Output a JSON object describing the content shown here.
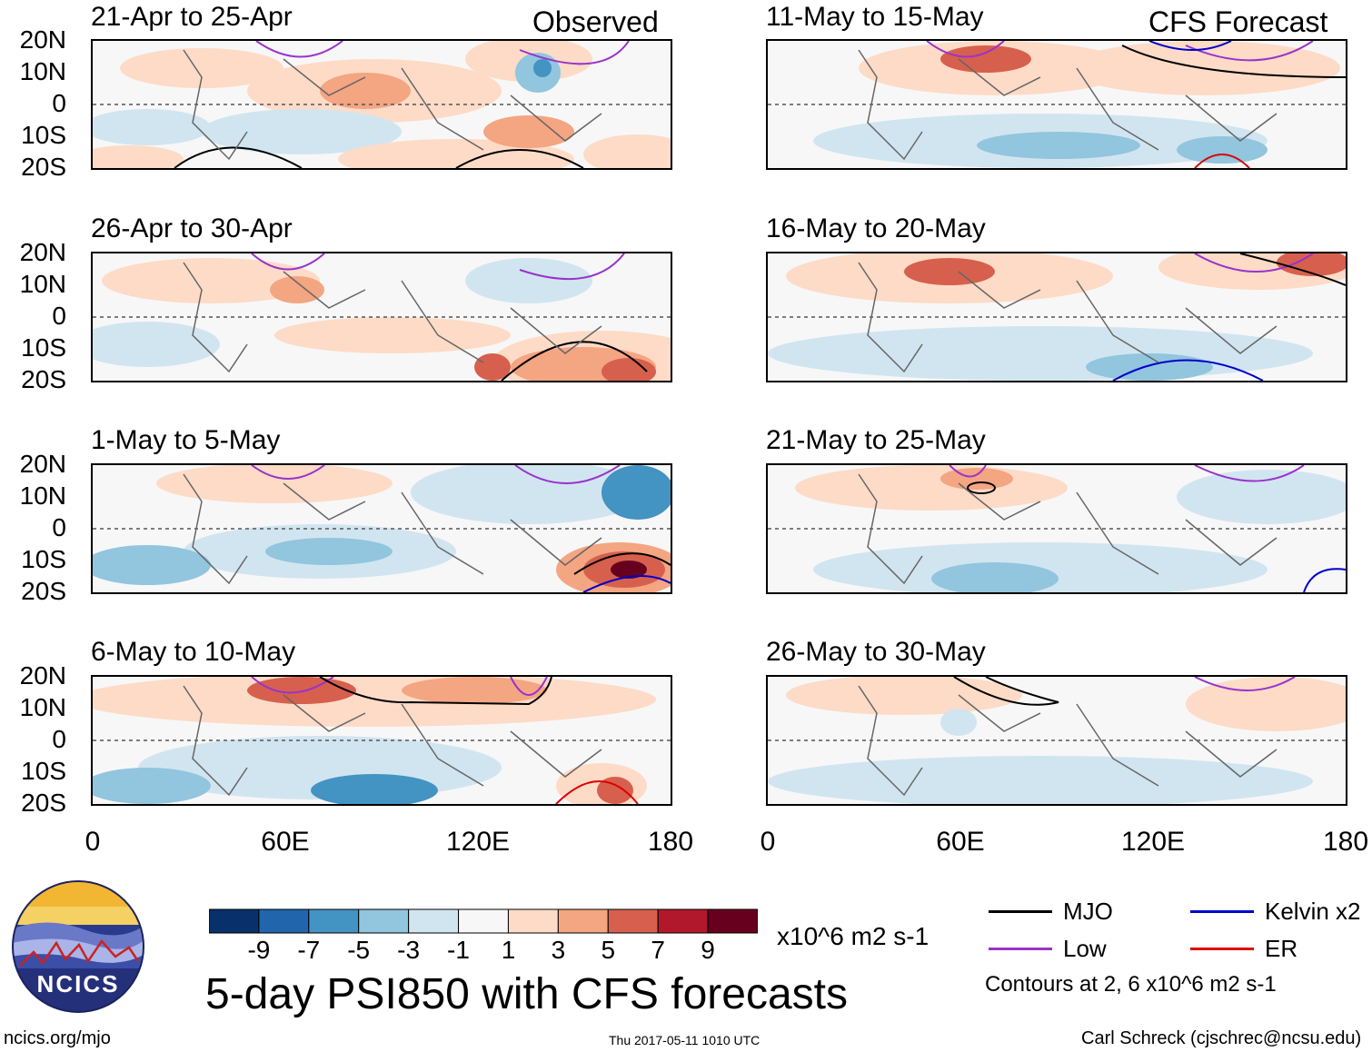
{
  "left_label": "Observed",
  "right_label": "CFS Forecast",
  "panels_left": [
    "21-Apr to 25-Apr",
    "26-Apr to 30-Apr",
    "1-May to 5-May",
    "6-May to 10-May"
  ],
  "panels_right": [
    "11-May to 15-May",
    "16-May to 20-May",
    "21-May to 25-May",
    "26-May to 30-May"
  ],
  "lat_labels": [
    "20N",
    "10N",
    "0",
    "10S",
    "20S"
  ],
  "lon_labels": [
    "0",
    "60E",
    "120E",
    "180"
  ],
  "colorbar": {
    "colors": [
      "#08306b",
      "#2166ac",
      "#4393c3",
      "#92c5de",
      "#d1e5f0",
      "#f7f7f7",
      "#fddbc7",
      "#f4a582",
      "#d6604d",
      "#b2182b",
      "#67001f"
    ],
    "labels": [
      "-9",
      "-7",
      "-5",
      "-3",
      "-1",
      "1",
      "3",
      "5",
      "7",
      "9"
    ],
    "units": "x10^6 m2 s-1"
  },
  "title": "5-day PSI850 with CFS forecasts",
  "legend": {
    "mjo": "MJO",
    "kelvin": "Kelvin x2",
    "low": "Low",
    "er": "ER",
    "note": "Contours at 2, 6 x10^6 m2 s-1",
    "colors": {
      "mjo": "#000000",
      "kelvin": "#0000cc",
      "low": "#9933cc",
      "er": "#dd0000"
    }
  },
  "logo_text": "NCICS",
  "footer": {
    "url": "ncics.org/mjo",
    "timestamp": "Thu 2017-05-11 1010 UTC",
    "credit": "Carl Schreck (cjschrec@ncsu.edu)"
  }
}
